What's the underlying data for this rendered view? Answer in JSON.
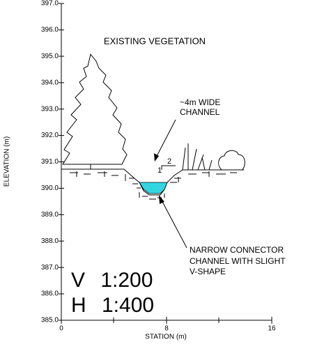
{
  "y_axis": {
    "label": "ELEVATION (m)",
    "ticks": [
      "397.0",
      "396.0",
      "395.0",
      "394.0",
      "393.0",
      "392.0",
      "391.0",
      "390.0",
      "389.0",
      "388.0",
      "387.0",
      "386.0",
      "385.0"
    ]
  },
  "x_axis": {
    "label": "STATION (m)",
    "ticks": [
      "0",
      "8",
      "16"
    ]
  },
  "annotations": {
    "vegetation": "EXISTING VEGETATION",
    "wide_channel": [
      "~4m WIDE",
      "CHANNEL"
    ],
    "slope_rise": "1",
    "slope_run": "2",
    "connector": [
      "NARROW CONNECTOR",
      "CHANNEL WITH SLIGHT",
      "V-SHAPE"
    ]
  },
  "scale": {
    "vertical": "V 1:200",
    "horizontal": "H 1:400"
  }
}
